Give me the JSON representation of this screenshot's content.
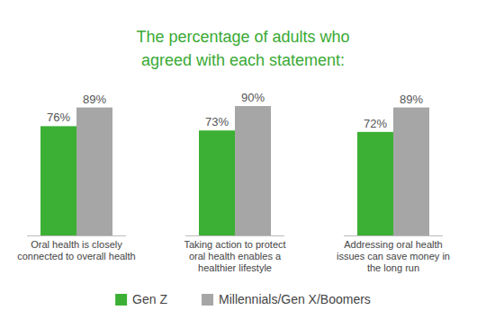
{
  "chart_data": {
    "type": "bar",
    "title": "The percentage of adults who agreed with each statement:",
    "categories": [
      "Oral health is closely connected to overall health",
      "Taking action to protect oral health enables a healthier lifestyle",
      "Addressing oral health issues can save money in the long run"
    ],
    "series": [
      {
        "name": "Gen Z",
        "color": "#3cb034",
        "values": [
          76,
          73,
          72
        ],
        "value_labels": [
          "76%",
          "73%",
          "72%"
        ]
      },
      {
        "name": "Millennials/Gen X/Boomers",
        "color": "#a6a6a6",
        "values": [
          89,
          90,
          89
        ],
        "value_labels": [
          "89%",
          "90%",
          "89%"
        ]
      }
    ],
    "data_labels": true,
    "tick_labels": false,
    "legend": "bottom"
  }
}
